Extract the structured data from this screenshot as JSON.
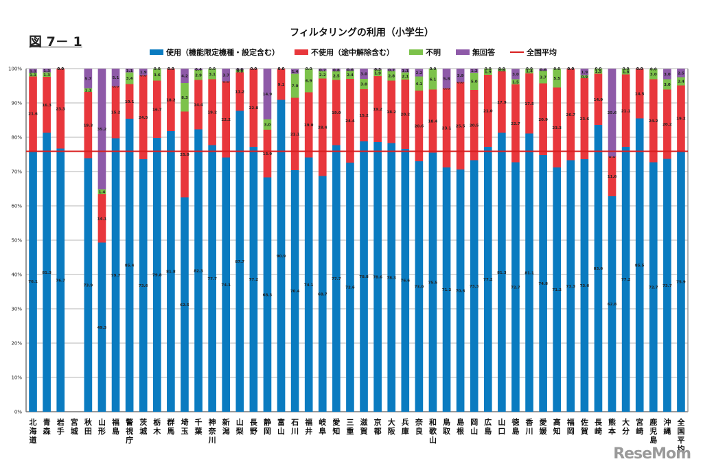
{
  "figure_label": "図 7－ 1",
  "watermark": "ReseMom",
  "colors": {
    "use": "#0a7bc0",
    "nouse": "#e8373c",
    "unknown": "#7cc24a",
    "noanswer": "#8e5aa8",
    "average": "#d81e1e"
  },
  "chart_data": {
    "type": "bar",
    "stacked": true,
    "title": "フィルタリングの利用（小学生）",
    "xlabel": "",
    "ylabel": "",
    "ylim": [
      0,
      100
    ],
    "yticks": [
      "0%",
      "10%",
      "20%",
      "30%",
      "40%",
      "50%",
      "60%",
      "70%",
      "80%",
      "90%",
      "100%"
    ],
    "grid": true,
    "legend_position": "top",
    "legend": [
      {
        "key": "use",
        "label": "使用（機能限定機種・設定含む）",
        "kind": "bar"
      },
      {
        "key": "nouse",
        "label": "不使用（途中解除含む）",
        "kind": "bar"
      },
      {
        "key": "unknown",
        "label": "不明",
        "kind": "bar"
      },
      {
        "key": "noanswer",
        "label": "無回答",
        "kind": "bar"
      },
      {
        "key": "average",
        "label": "全国平均",
        "kind": "line"
      }
    ],
    "average_line": 75.9,
    "categories": [
      "北海道",
      "青森",
      "岩手",
      "宮城",
      "秋田",
      "山形",
      "福島",
      "警視庁",
      "茨城",
      "栃木",
      "群馬",
      "埼玉",
      "千葉",
      "神奈川",
      "新潟",
      "山梨",
      "長野",
      "静岡",
      "富山",
      "石川",
      "福井",
      "岐阜",
      "愛知",
      "三重",
      "滋賀",
      "京都",
      "大阪",
      "兵庫",
      "奈良",
      "和歌山",
      "鳥取",
      "島根",
      "岡山",
      "広島",
      "山口",
      "徳島",
      "香川",
      "愛媛",
      "高知",
      "福岡",
      "佐賀",
      "長崎",
      "熊本",
      "大分",
      "宮崎",
      "鹿児島",
      "沖縄",
      "全国平均"
    ],
    "series": [
      {
        "name": "使用（機能限定機種・設定含む）",
        "key": "use",
        "values": [
          76.1,
          81.3,
          76.7,
          null,
          73.9,
          49.3,
          79.7,
          85.4,
          73.6,
          79.8,
          81.8,
          62.5,
          82.3,
          77.7,
          74.1,
          87.7,
          77.2,
          68.3,
          90.9,
          70.4,
          74.1,
          68.7,
          77.7,
          72.6,
          78.8,
          78.6,
          78.3,
          76.6,
          73.0,
          75.5,
          71.2,
          70.6,
          73.3,
          77.2,
          81.3,
          72.7,
          81.1,
          74.8,
          71.2,
          73.3,
          73.6,
          83.6,
          62.8,
          77.2,
          85.5,
          72.7,
          73.7,
          75.9
        ]
      },
      {
        "name": "不使用（途中解除含む）",
        "key": "nouse",
        "values": [
          21.6,
          16.3,
          23.3,
          null,
          19.3,
          14.1,
          15.2,
          10.1,
          24.5,
          16.7,
          18.2,
          25.0,
          14.4,
          19.2,
          22.2,
          11.2,
          22.8,
          13.9,
          9.1,
          21.1,
          19.0,
          28.4,
          19.0,
          24.4,
          15.2,
          19.2,
          18.2,
          20.2,
          20.6,
          18.4,
          23.1,
          25.5,
          20.5,
          21.0,
          17.9,
          22.7,
          17.5,
          20.9,
          23.3,
          26.7,
          23.6,
          14.9,
          11.6,
          21.1,
          14.5,
          24.2,
          20.2,
          19.2
        ]
      },
      {
        "name": "不明",
        "key": "unknown",
        "values": [
          1.1,
          1.3,
          0.0,
          null,
          1.1,
          1.4,
          0.0,
          3.4,
          0.0,
          3.6,
          0.0,
          8.3,
          2.9,
          3.1,
          0.0,
          0.8,
          0.0,
          3.0,
          0.0,
          7.0,
          6.9,
          2.2,
          2.5,
          2.4,
          3.0,
          1.9,
          2.8,
          2.1,
          4.1,
          6.1,
          0.0,
          0.0,
          5.0,
          1.9,
          0.8,
          1.5,
          1.4,
          3.7,
          5.5,
          0.0,
          0.9,
          1.5,
          0.0,
          1.8,
          0.0,
          3.0,
          3.0,
          2.4
        ]
      },
      {
        "name": "無回答",
        "key": "noanswer",
        "values": [
          1.1,
          1.3,
          0.0,
          null,
          5.7,
          35.2,
          5.1,
          1.1,
          1.9,
          0.0,
          0.0,
          4.2,
          0.4,
          0.0,
          3.7,
          0.6,
          0.0,
          14.9,
          0.0,
          1.4,
          0.0,
          0.7,
          0.8,
          0.6,
          3.0,
          0.3,
          0.7,
          1.1,
          2.2,
          0.0,
          5.8,
          3.9,
          1.2,
          0.0,
          0.0,
          3.0,
          0.0,
          0.6,
          0.0,
          0.0,
          1.9,
          0.0,
          25.6,
          0.0,
          0.0,
          0.0,
          3.0,
          2.5
        ]
      }
    ]
  }
}
